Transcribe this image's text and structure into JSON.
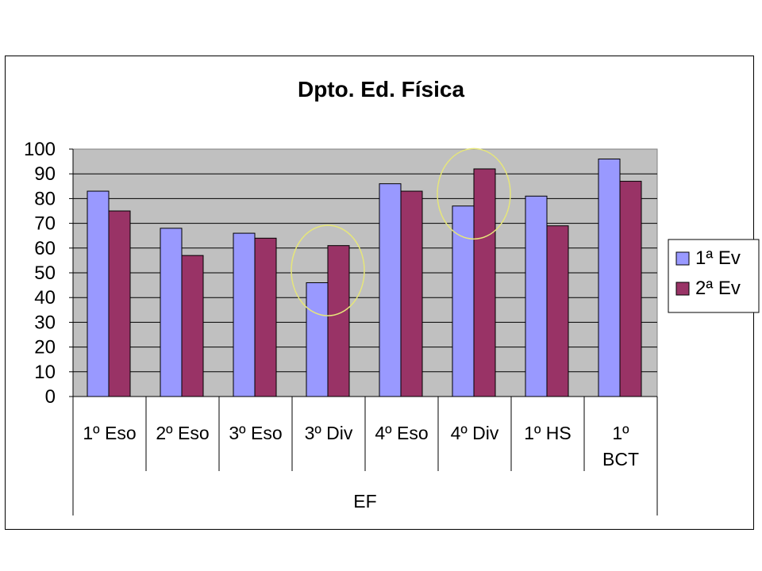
{
  "chart_data": {
    "type": "bar",
    "title": "Dpto. Ed. Física",
    "xlabel": "",
    "ylabel": "",
    "group_label": "EF",
    "categories": [
      [
        "1º Eso"
      ],
      [
        "2º Eso"
      ],
      [
        "3º Eso"
      ],
      [
        "3º Div"
      ],
      [
        "4º Eso"
      ],
      [
        "4º Div"
      ],
      [
        "1º HS"
      ],
      [
        "1º",
        "BCT"
      ]
    ],
    "series": [
      {
        "name": "1ª Ev",
        "color": "#9999ff",
        "values": [
          83,
          68,
          66,
          46,
          86,
          77,
          81,
          96
        ]
      },
      {
        "name": "2ª Ev",
        "color": "#993366",
        "values": [
          75,
          57,
          64,
          61,
          83,
          92,
          69,
          87
        ]
      }
    ],
    "ylim": [
      0,
      100
    ],
    "yticks": [
      0,
      10,
      20,
      30,
      40,
      50,
      60,
      70,
      80,
      90,
      100
    ],
    "grid": true,
    "plot_background": "#c0c0c0",
    "legend_position": "right",
    "highlights": [
      {
        "category": "3º Div",
        "color": "#e6e67a"
      },
      {
        "category": "4º Div",
        "color": "#e6e67a"
      }
    ]
  }
}
